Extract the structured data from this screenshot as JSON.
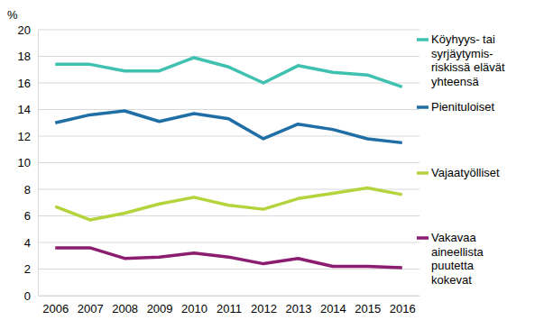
{
  "chart_data": {
    "type": "line",
    "y_label": "%",
    "categories": [
      "2006",
      "2007",
      "2008",
      "2009",
      "2010",
      "2011",
      "2012",
      "2013",
      "2014",
      "2015",
      "2016"
    ],
    "series": [
      {
        "name": "Köyhyys- tai\nsyrjäytymis-\nriskissä elävät\nyhteensä",
        "color": "#3fc1b0",
        "values": [
          17.4,
          17.4,
          16.9,
          16.9,
          17.9,
          17.2,
          16.0,
          17.3,
          16.8,
          16.6,
          15.7
        ]
      },
      {
        "name": "Pienituloiset",
        "color": "#1f6ea6",
        "values": [
          13.0,
          13.6,
          13.9,
          13.1,
          13.7,
          13.3,
          11.8,
          12.9,
          12.5,
          11.8,
          11.5
        ]
      },
      {
        "name": "Vajaatyölliset",
        "color": "#b4d33c",
        "values": [
          6.7,
          5.7,
          6.2,
          6.9,
          7.4,
          6.8,
          6.5,
          7.3,
          7.7,
          8.1,
          7.6
        ]
      },
      {
        "name": "Vakavaa\naineellista\npuutetta\nkokevat",
        "color": "#8c1c6f",
        "values": [
          3.6,
          3.6,
          2.8,
          2.9,
          3.2,
          2.9,
          2.4,
          2.8,
          2.2,
          2.2,
          2.1
        ]
      }
    ],
    "ylim": [
      0,
      20
    ],
    "yticks": [
      0,
      2,
      4,
      6,
      8,
      10,
      12,
      14,
      16,
      18,
      20
    ],
    "grid": true,
    "legend": "right"
  }
}
